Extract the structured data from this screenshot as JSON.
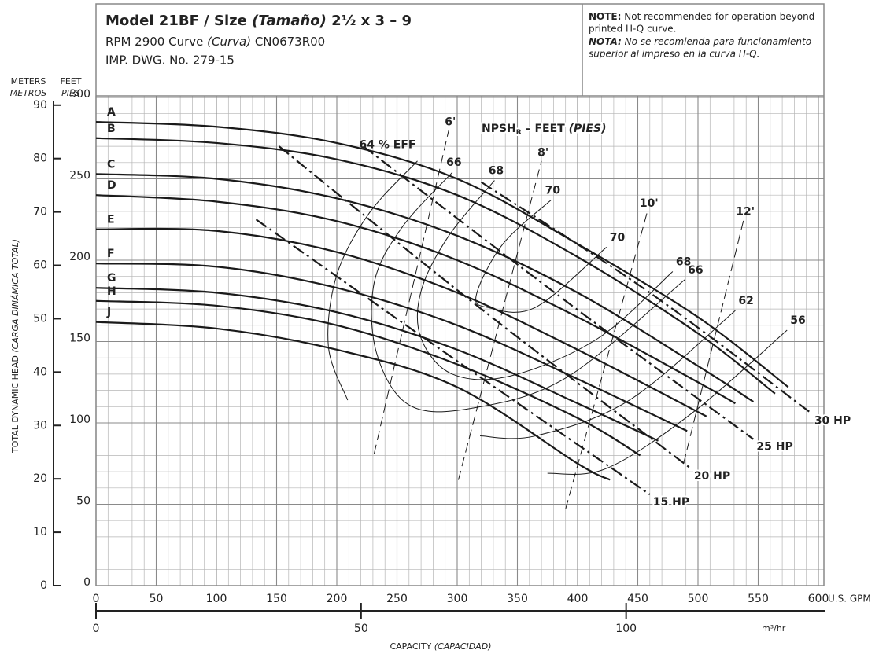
{
  "chart_data": {
    "type": "line",
    "title_parts": [
      "Model 21BF / Size ",
      "(Tamaño)",
      " 2½ x 3 – 9"
    ],
    "subtitle_parts": [
      "RPM 2900 Curve ",
      "(Curva)",
      " CN0673R00"
    ],
    "drawing_no": "IMP. DWG. No. 279-15",
    "note": {
      "label": "NOTE:",
      "lines": [
        " Not recommended for operation beyond",
        "printed H-Q curve."
      ]
    },
    "nota": {
      "label": "NOTA:",
      "lines": [
        " No se recomienda para funcionamiento",
        "superior al impreso en la curva H-Q."
      ]
    },
    "y2_unit": "METERS",
    "y2_unit_es": "METROS",
    "y_unit": "FEET",
    "y_unit_es": "PIES",
    "ylabel_parts": [
      "TOTAL DYNAMIC HEAD ",
      "(CARGA DINÁMICA TOTAL)"
    ],
    "xlabel_parts": [
      "CAPACITY ",
      "(CAPACIDAD)"
    ],
    "x_unit": "U.S. GPM",
    "x2_unit": "m³/hr",
    "npsh_annotation": [
      "NPSH",
      "R",
      " – FEET ",
      "(PIES)"
    ],
    "xlim": [
      0,
      600
    ],
    "xticks": [
      0,
      50,
      100,
      150,
      200,
      250,
      300,
      350,
      400,
      450,
      500,
      550,
      600
    ],
    "ylim": [
      0,
      300
    ],
    "yticks": [
      0,
      50,
      100,
      150,
      200,
      250,
      300
    ],
    "y2lim": [
      0,
      91.44
    ],
    "y2ticks": [
      0,
      10,
      20,
      30,
      40,
      50,
      60,
      70,
      80,
      90
    ],
    "x2lim": [
      0,
      136.27
    ],
    "x2ticks": [
      0,
      50,
      100
    ],
    "grid": true,
    "minor_grid": {
      "x_step": 10,
      "y_step": 10
    },
    "color": "#1a1a1a",
    "series": [
      {
        "name": "A",
        "style": "impeller",
        "x": [
          0,
          100,
          200,
          300,
          400,
          500,
          575
        ],
        "values": [
          285,
          282,
          272,
          250,
          210,
          165,
          122
        ]
      },
      {
        "name": "B",
        "style": "impeller",
        "x": [
          0,
          100,
          200,
          300,
          400,
          500,
          564
        ],
        "values": [
          275,
          272,
          262,
          240,
          202,
          155,
          118
        ]
      },
      {
        "name": "C",
        "style": "impeller",
        "x": [
          0,
          100,
          200,
          300,
          400,
          500,
          546
        ],
        "values": [
          253,
          250,
          238,
          215,
          180,
          135,
          113
        ]
      },
      {
        "name": "D",
        "style": "impeller",
        "x": [
          0,
          100,
          200,
          300,
          400,
          500,
          531
        ],
        "values": [
          240,
          236,
          224,
          200,
          165,
          125,
          112
        ]
      },
      {
        "name": "E",
        "style": "impeller",
        "x": [
          0,
          100,
          200,
          300,
          400,
          507
        ],
        "values": [
          219,
          218,
          205,
          180,
          145,
          104
        ]
      },
      {
        "name": "F",
        "style": "impeller",
        "x": [
          0,
          100,
          200,
          300,
          400,
          491
        ],
        "values": [
          198,
          196,
          183,
          160,
          127,
          95
        ]
      },
      {
        "name": "G",
        "style": "impeller",
        "x": [
          0,
          100,
          200,
          300,
          400,
          467
        ],
        "values": [
          183,
          180,
          168,
          145,
          112,
          89
        ]
      },
      {
        "name": "H",
        "style": "impeller",
        "x": [
          0,
          100,
          200,
          300,
          400,
          452
        ],
        "values": [
          175,
          172,
          160,
          136,
          103,
          80
        ]
      },
      {
        "name": "J",
        "style": "impeller",
        "x": [
          0,
          100,
          200,
          300,
          400,
          427
        ],
        "values": [
          162,
          158,
          145,
          122,
          75,
          65
        ]
      },
      {
        "name": "15 HP",
        "style": "hp",
        "x": [
          133,
          300,
          460
        ],
        "values": [
          225,
          138,
          56
        ]
      },
      {
        "name": "20 HP",
        "style": "hp",
        "x": [
          152,
          320,
          494
        ],
        "values": [
          270,
          170,
          72
        ]
      },
      {
        "name": "25 HP",
        "style": "hp",
        "x": [
          222,
          390,
          546
        ],
        "values": [
          270,
          175,
          90
        ]
      },
      {
        "name": "30 HP",
        "style": "hp",
        "x": [
          320,
          460,
          594
        ],
        "values": [
          248,
          180,
          106
        ]
      },
      {
        "name": "64",
        "style": "efficiency",
        "labels": [
          "64 % EFF"
        ],
        "x": [
          209,
          193,
          200,
          227,
          267
        ],
        "values": [
          114,
          147,
          191,
          229,
          261
        ]
      },
      {
        "name": "66",
        "style": "efficiency",
        "labels": [
          "66",
          "66"
        ],
        "x": [
          296,
          254,
          231,
          233,
          260,
          312,
          391,
          489
        ],
        "values": [
          254,
          220,
          186,
          143,
          111,
          109,
          128,
          188
        ]
      },
      {
        "name": "68",
        "style": "efficiency",
        "labels": [
          "68",
          "68"
        ],
        "x": [
          331,
          293,
          270,
          270,
          296,
          345,
          417,
          479
        ],
        "values": [
          249,
          215,
          181,
          152,
          130,
          129,
          152,
          193
        ]
      },
      {
        "name": "70",
        "style": "efficiency",
        "labels": [
          "70",
          "70"
        ],
        "x": [
          378,
          338,
          316,
          325,
          365,
          424
        ],
        "values": [
          237,
          210,
          179,
          171,
          171,
          208
        ]
      },
      {
        "name": "62",
        "style": "efficiency",
        "labels": [
          "62"
        ],
        "x": [
          319,
          365,
          443,
          531
        ],
        "values": [
          92,
          92,
          114,
          169
        ]
      },
      {
        "name": "56",
        "style": "efficiency",
        "labels": [
          "56"
        ],
        "x": [
          375,
          424,
          495,
          574
        ],
        "values": [
          69,
          72,
          106,
          157
        ]
      },
      {
        "name": "6'",
        "style": "npsh",
        "x": [
          231,
          293
        ],
        "values": [
          81,
          280
        ]
      },
      {
        "name": "8'",
        "style": "npsh",
        "x": [
          301,
          370
        ],
        "values": [
          65,
          261
        ]
      },
      {
        "name": "10'",
        "style": "npsh",
        "x": [
          390,
          458
        ],
        "values": [
          47,
          230
        ]
      },
      {
        "name": "12'",
        "style": "npsh",
        "x": [
          488,
          538
        ],
        "values": [
          75,
          225
        ]
      }
    ]
  }
}
